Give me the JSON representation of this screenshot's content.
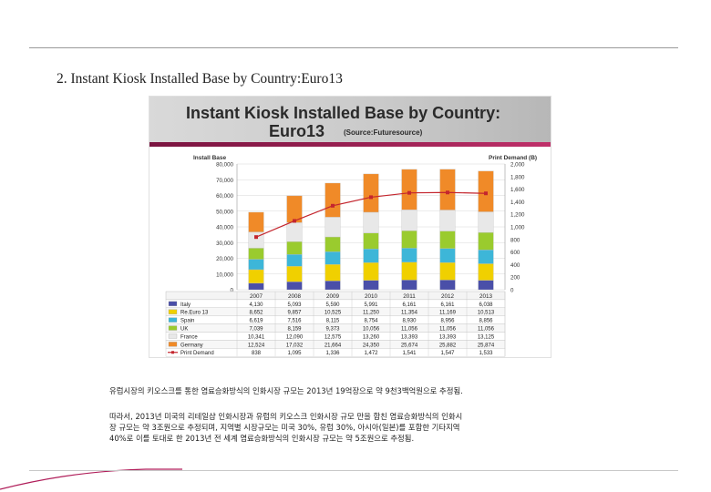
{
  "heading": "2. Instant Kiosk Installed Base by Country:Euro13",
  "figure": {
    "title_line1": "Instant Kiosk Installed Base by Country:",
    "title_line2": "Euro13",
    "source": "(Source:Futuresource)",
    "y_left_label": "Install Base",
    "y_right_label": "Print Demand (B)"
  },
  "chart_data": {
    "type": "bar",
    "stacked": true,
    "categories": [
      "2007",
      "2008",
      "2009",
      "2010",
      "2011",
      "2012",
      "2013"
    ],
    "series": [
      {
        "name": "Italy",
        "color": "#4a4fa8",
        "values": [
          4130,
          5093,
          5590,
          5991,
          6161,
          6161,
          6038
        ]
      },
      {
        "name": "Re.Euro 13",
        "color": "#f0d000",
        "values": [
          8652,
          9857,
          10525,
          11250,
          11354,
          11169,
          10513
        ]
      },
      {
        "name": "Spain",
        "color": "#3db6d8",
        "values": [
          6619,
          7516,
          8115,
          8754,
          8930,
          8956,
          8856
        ]
      },
      {
        "name": "UK",
        "color": "#9acb2e",
        "values": [
          7039,
          8159,
          9373,
          10056,
          11056,
          11056,
          11056
        ]
      },
      {
        "name": "France",
        "color": "#e8e8e8",
        "values": [
          10341,
          12090,
          12575,
          13260,
          13393,
          13393,
          13125
        ]
      },
      {
        "name": "Germany",
        "color": "#f08a28",
        "values": [
          12524,
          17032,
          21664,
          24350,
          25674,
          25882,
          25874
        ]
      }
    ],
    "line_series": {
      "name": "Print Demand",
      "color": "#c4262e",
      "values": [
        838,
        1095,
        1336,
        1472,
        1541,
        1547,
        1533
      ]
    },
    "y_left": {
      "ylim": [
        0,
        80000
      ],
      "ticks": [
        "0",
        "10,000",
        "20,000",
        "30,000",
        "40,000",
        "50,000",
        "60,000",
        "70,000",
        "80,000"
      ]
    },
    "y_right": {
      "ylim": [
        0,
        2000
      ],
      "ticks": [
        "0",
        "200",
        "400",
        "600",
        "800",
        "1,000",
        "1,200",
        "1,400",
        "1,600",
        "1,800",
        "2,000"
      ]
    },
    "table_values": [
      [
        "4,130",
        "5,093",
        "5,590",
        "5,991",
        "6,161",
        "6,161",
        "6,038"
      ],
      [
        "8,652",
        "9,857",
        "10,525",
        "11,250",
        "11,354",
        "11,169",
        "10,513"
      ],
      [
        "6,619",
        "7,516",
        "8,115",
        "8,754",
        "8,930",
        "8,956",
        "8,856"
      ],
      [
        "7,039",
        "8,159",
        "9,373",
        "10,056",
        "11,056",
        "11,056",
        "11,056"
      ],
      [
        "10,341",
        "12,090",
        "12,575",
        "13,260",
        "13,393",
        "13,393",
        "13,125"
      ],
      [
        "12,524",
        "17,032",
        "21,664",
        "24,350",
        "25,674",
        "25,882",
        "25,874"
      ],
      [
        "838",
        "1,095",
        "1,336",
        "1,472",
        "1,541",
        "1,547",
        "1,533"
      ]
    ]
  },
  "body_text": {
    "line1": "유럽시장의 키오스크를 통한 염료승화방식의 인화시장 규모는 2013년 19억장으로 약 9천3백억원으로 추정됨.",
    "line2": "따라서, 2013년 미국의 리테일샵  인화시장과 유럽의 키오스크 인화시장 규모 만을 합친 염료승화방식의 인화시",
    "line3": "장  규모는 약 3조원으로 추정되며, 지역별 시장규모는 미국 30%, 유럽 30%, 아시아(일본)를 포함한 기타지역",
    "line4": "40%로 이를 토대로 한 2013년 전 세계 염료승화방식의 인화시장 규모는 약 5조원으로 추정됨."
  }
}
